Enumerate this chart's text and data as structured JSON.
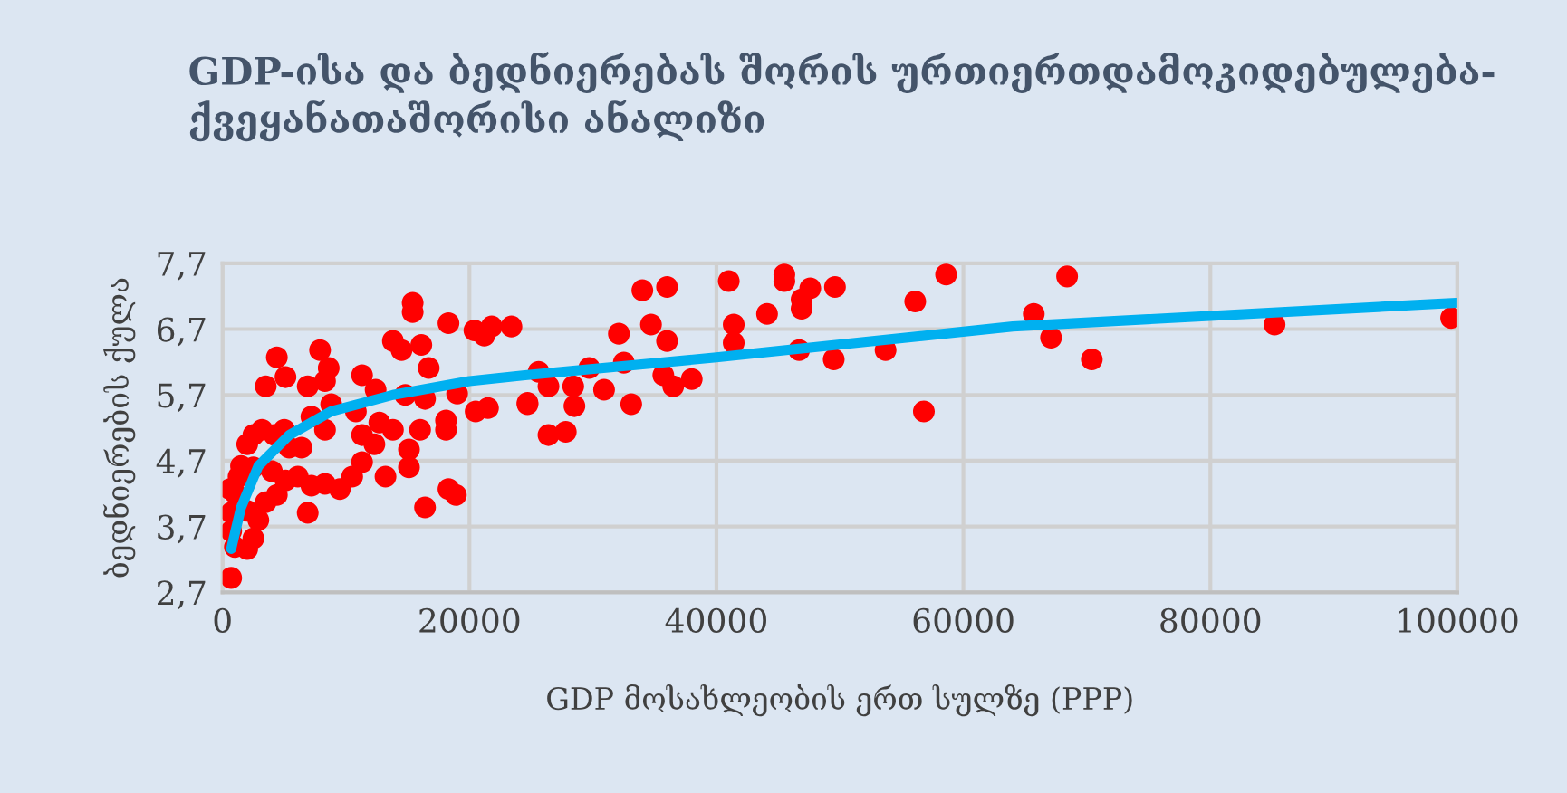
{
  "chart_data": {
    "type": "scatter",
    "title": "GDP-ისა და ბედნიერებას შორის ურთიერთდამოკიდებულება- ქვეყანათაშორისი ანალიზი",
    "xlabel": "GDP მოსახლეობის ერთ სულზე (PPP)",
    "ylabel": "ბედნიერების ქულა",
    "xlim": [
      0,
      100000
    ],
    "xticks": [
      0,
      20000,
      40000,
      60000,
      80000,
      100000
    ],
    "ylim": [
      2.7,
      7.7
    ],
    "yticks": [
      {
        "value": 2.7,
        "label": "2,7"
      },
      {
        "value": 3.7,
        "label": "3,7"
      },
      {
        "value": 4.7,
        "label": "4,7"
      },
      {
        "value": 5.7,
        "label": "5,7"
      },
      {
        "value": 6.7,
        "label": "6,7"
      },
      {
        "value": 7.7,
        "label": "7,7"
      }
    ],
    "grid": true,
    "marker": "circle",
    "series": [
      {
        "color": "#ff0000",
        "x": [
          99500,
          85200,
          65700,
          68400,
          67100,
          70400,
          24700,
          26400,
          26400,
          27800,
          28500,
          28400,
          29700,
          30900,
          32100,
          32500,
          33100,
          34000,
          36000,
          34700,
          36000,
          35700,
          36500,
          38000,
          41000,
          41400,
          41400,
          44100,
          45500,
          45500,
          46900,
          46900,
          47600,
          49600,
          46700,
          49500,
          53700,
          56100,
          56800,
          58600,
          700,
          1000,
          700,
          700,
          1000,
          1500,
          2000,
          2500,
          3200,
          4200,
          5400,
          6400,
          5000,
          7200,
          8300,
          2000,
          2500,
          2000,
          2900,
          3500,
          4400,
          5100,
          6100,
          6900,
          7200,
          8300,
          9500,
          10500,
          11300,
          12300,
          13200,
          15100,
          15100,
          13800,
          16000,
          18100,
          18100,
          12700,
          11300,
          10800,
          8800,
          3500,
          4400,
          5100,
          6900,
          7900,
          8600,
          8300,
          11300,
          12400,
          13800,
          14500,
          15400,
          15400,
          16100,
          16700,
          14800,
          16400,
          18300,
          20400,
          21200,
          21800,
          23400,
          19000,
          20500,
          21500,
          24700,
          18300,
          18900,
          16400,
          25600,
          600,
          1300,
          2500,
          4000
        ],
        "values": [
          6.87,
          6.77,
          6.93,
          7.5,
          6.57,
          6.24,
          5.56,
          5.83,
          5.09,
          5.14,
          5.53,
          5.83,
          6.11,
          5.78,
          6.63,
          6.19,
          5.56,
          7.29,
          7.34,
          6.77,
          6.52,
          6.0,
          5.83,
          5.94,
          7.43,
          6.77,
          6.49,
          6.93,
          7.53,
          7.43,
          7.15,
          7.01,
          7.32,
          7.34,
          6.38,
          6.24,
          6.38,
          7.12,
          5.45,
          7.53,
          2.92,
          3.39,
          3.63,
          3.91,
          4.21,
          4.62,
          4.95,
          5.09,
          5.17,
          5.09,
          4.9,
          4.9,
          5.17,
          5.37,
          5.17,
          3.94,
          3.52,
          3.36,
          3.8,
          4.07,
          4.18,
          4.4,
          4.46,
          3.91,
          4.32,
          4.35,
          4.27,
          4.46,
          4.68,
          4.95,
          4.46,
          4.6,
          4.87,
          5.17,
          5.17,
          5.17,
          5.31,
          5.28,
          5.09,
          5.45,
          5.56,
          5.83,
          6.27,
          5.97,
          5.83,
          6.38,
          6.11,
          5.91,
          6.0,
          5.78,
          6.52,
          6.38,
          7.1,
          6.96,
          6.46,
          6.11,
          5.7,
          5.64,
          6.79,
          6.68,
          6.6,
          6.74,
          6.74,
          5.72,
          5.45,
          5.5,
          5.58,
          4.27,
          4.18,
          3.99,
          6.05,
          4.27,
          4.46,
          4.6,
          4.54
        ]
      },
      {
        "type": "line",
        "marker": "none",
        "color": "#00b0f0",
        "x": [
          700,
          1500,
          2900,
          5400,
          8800,
          13800,
          20000,
          24500,
          40000,
          64000,
          99900
        ],
        "values": [
          3.36,
          3.99,
          4.62,
          5.09,
          5.45,
          5.7,
          5.91,
          6.0,
          6.27,
          6.74,
          7.1
        ]
      }
    ]
  }
}
